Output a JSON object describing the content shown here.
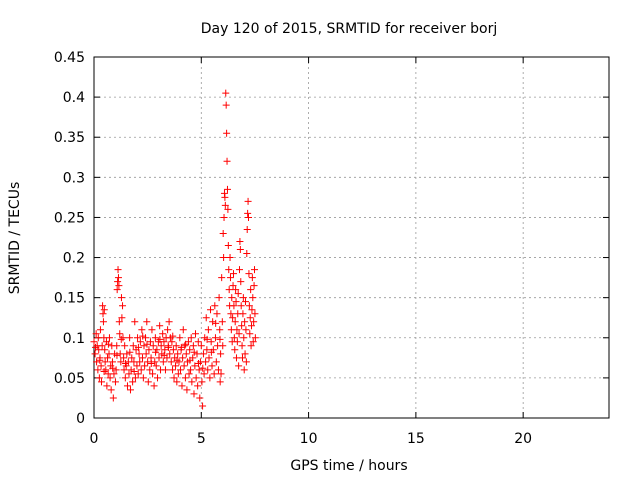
{
  "chart_data": {
    "type": "scatter",
    "title": "Day 120 of 2015, SRMTID for receiver borj",
    "xlabel": "GPS time / hours",
    "ylabel": "SRMTID / TECUs",
    "xlim": [
      0,
      24
    ],
    "ylim": [
      0,
      0.45
    ],
    "grid": true,
    "x_ticks": [
      0,
      5,
      10,
      15,
      20
    ],
    "x_tick_labels": [
      "0",
      "5",
      "10",
      "15",
      "20"
    ],
    "y_ticks": [
      0,
      0.05,
      0.1,
      0.15,
      0.2,
      0.25,
      0.3,
      0.35,
      0.4,
      0.45
    ],
    "y_tick_labels": [
      "0",
      "0.05",
      "0.1",
      "0.15",
      "0.2",
      "0.25",
      "0.3",
      "0.35",
      "0.4",
      "0.45"
    ],
    "marker": "+",
    "color": "#ff0000",
    "series": [
      {
        "name": "SRMTID",
        "points": [
          [
            0.0,
            0.095
          ],
          [
            0.05,
            0.08
          ],
          [
            0.1,
            0.105
          ],
          [
            0.12,
            0.07
          ],
          [
            0.15,
            0.09
          ],
          [
            0.18,
            0.06
          ],
          [
            0.2,
            0.1
          ],
          [
            0.22,
            0.085
          ],
          [
            0.25,
            0.05
          ],
          [
            0.28,
            0.075
          ],
          [
            0.3,
            0.11
          ],
          [
            0.33,
            0.065
          ],
          [
            0.35,
            0.045
          ],
          [
            0.38,
            0.09
          ],
          [
            0.4,
            0.14
          ],
          [
            0.42,
            0.13
          ],
          [
            0.44,
            0.12
          ],
          [
            0.46,
            0.1
          ],
          [
            0.48,
            0.135
          ],
          [
            0.5,
            0.085
          ],
          [
            0.52,
            0.07
          ],
          [
            0.55,
            0.06
          ],
          [
            0.58,
            0.095
          ],
          [
            0.6,
            0.04
          ],
          [
            0.63,
            0.075
          ],
          [
            0.66,
            0.055
          ],
          [
            0.7,
            0.08
          ],
          [
            0.72,
            0.1
          ],
          [
            0.75,
            0.05
          ],
          [
            0.78,
            0.065
          ],
          [
            0.8,
            0.035
          ],
          [
            0.83,
            0.09
          ],
          [
            0.86,
            0.07
          ],
          [
            0.9,
            0.025
          ],
          [
            0.93,
            0.055
          ],
          [
            0.96,
            0.08
          ],
          [
            1.0,
            0.045
          ],
          [
            1.03,
            0.06
          ],
          [
            1.06,
            0.09
          ],
          [
            1.08,
            0.16
          ],
          [
            1.1,
            0.17
          ],
          [
            1.12,
            0.185
          ],
          [
            1.14,
            0.175
          ],
          [
            1.16,
            0.165
          ],
          [
            1.18,
            0.12
          ],
          [
            1.2,
            0.105
          ],
          [
            1.22,
            0.08
          ],
          [
            1.25,
            0.07
          ],
          [
            1.28,
            0.15
          ],
          [
            1.3,
            0.125
          ],
          [
            1.33,
            0.14
          ],
          [
            1.35,
            0.1
          ],
          [
            1.38,
            0.075
          ],
          [
            1.4,
            0.06
          ],
          [
            1.43,
            0.09
          ],
          [
            1.46,
            0.05
          ],
          [
            1.5,
            0.065
          ],
          [
            1.53,
            0.08
          ],
          [
            1.56,
            0.04
          ],
          [
            1.6,
            0.07
          ],
          [
            1.63,
            0.055
          ],
          [
            1.66,
            0.1
          ],
          [
            1.7,
            0.035
          ],
          [
            1.73,
            0.06
          ],
          [
            1.76,
            0.075
          ],
          [
            1.8,
            0.045
          ],
          [
            1.83,
            0.09
          ],
          [
            1.86,
            0.07
          ],
          [
            1.9,
            0.12
          ],
          [
            1.93,
            0.05
          ],
          [
            1.96,
            0.085
          ],
          [
            2.0,
            0.065
          ],
          [
            2.03,
            0.1
          ],
          [
            2.06,
            0.055
          ],
          [
            2.1,
            0.08
          ],
          [
            2.13,
            0.07
          ],
          [
            2.16,
            0.095
          ],
          [
            2.2,
            0.06
          ],
          [
            2.23,
            0.11
          ],
          [
            2.26,
            0.075
          ],
          [
            2.3,
            0.05
          ],
          [
            2.33,
            0.09
          ],
          [
            2.36,
            0.065
          ],
          [
            2.4,
            0.1
          ],
          [
            2.43,
            0.08
          ],
          [
            2.46,
            0.12
          ],
          [
            2.5,
            0.07
          ],
          [
            2.53,
            0.045
          ],
          [
            2.56,
            0.085
          ],
          [
            2.6,
            0.06
          ],
          [
            2.63,
            0.095
          ],
          [
            2.66,
            0.075
          ],
          [
            2.7,
            0.11
          ],
          [
            2.73,
            0.055
          ],
          [
            2.76,
            0.09
          ],
          [
            2.8,
            0.04
          ],
          [
            2.83,
            0.07
          ],
          [
            2.86,
            0.1
          ],
          [
            2.9,
            0.065
          ],
          [
            2.93,
            0.085
          ],
          [
            2.96,
            0.05
          ],
          [
            3.0,
            0.095
          ],
          [
            3.03,
            0.075
          ],
          [
            3.06,
            0.115
          ],
          [
            3.1,
            0.06
          ],
          [
            3.13,
            0.09
          ],
          [
            3.16,
            0.08
          ],
          [
            3.2,
            0.105
          ],
          [
            3.23,
            0.07
          ],
          [
            3.26,
            0.095
          ],
          [
            3.3,
            0.085
          ],
          [
            3.33,
            0.06
          ],
          [
            3.36,
            0.1
          ],
          [
            3.4,
            0.075
          ],
          [
            3.43,
            0.11
          ],
          [
            3.46,
            0.09
          ],
          [
            3.5,
            0.12
          ],
          [
            3.53,
            0.08
          ],
          [
            3.56,
            0.1
          ],
          [
            3.6,
            0.07
          ],
          [
            3.63,
            0.095
          ],
          [
            3.66,
            0.06
          ],
          [
            3.7,
            0.085
          ],
          [
            3.73,
            0.05
          ],
          [
            3.76,
            0.075
          ],
          [
            3.8,
            0.065
          ],
          [
            3.83,
            0.09
          ],
          [
            3.86,
            0.045
          ],
          [
            3.9,
            0.08
          ],
          [
            3.93,
            0.055
          ],
          [
            3.96,
            0.07
          ],
          [
            4.0,
            0.1
          ],
          [
            4.03,
            0.06
          ],
          [
            4.06,
            0.085
          ],
          [
            4.1,
            0.04
          ],
          [
            4.13,
            0.075
          ],
          [
            4.16,
            0.11
          ],
          [
            4.2,
            0.065
          ],
          [
            4.23,
            0.09
          ],
          [
            4.26,
            0.05
          ],
          [
            4.3,
            0.08
          ],
          [
            4.33,
            0.035
          ],
          [
            4.36,
            0.07
          ],
          [
            4.4,
            0.095
          ],
          [
            4.43,
            0.055
          ],
          [
            4.46,
            0.085
          ],
          [
            4.5,
            0.06
          ],
          [
            4.53,
            0.1
          ],
          [
            4.56,
            0.045
          ],
          [
            4.6,
            0.075
          ],
          [
            4.63,
            0.09
          ],
          [
            4.66,
            0.03
          ],
          [
            4.7,
            0.065
          ],
          [
            4.73,
            0.105
          ],
          [
            4.76,
            0.05
          ],
          [
            4.8,
            0.08
          ],
          [
            4.83,
            0.04
          ],
          [
            4.86,
            0.095
          ],
          [
            4.9,
            0.06
          ],
          [
            4.93,
            0.025
          ],
          [
            4.96,
            0.07
          ],
          [
            5.0,
            0.09
          ],
          [
            5.03,
            0.045
          ],
          [
            5.06,
            0.015
          ],
          [
            5.1,
            0.08
          ],
          [
            5.13,
            0.055
          ],
          [
            5.16,
            0.1
          ],
          [
            5.2,
            0.07
          ],
          [
            5.23,
            0.125
          ],
          [
            5.26,
            0.085
          ],
          [
            5.3,
            0.06
          ],
          [
            5.33,
            0.11
          ],
          [
            5.36,
            0.075
          ],
          [
            5.4,
            0.05
          ],
          [
            5.43,
            0.135
          ],
          [
            5.46,
            0.095
          ],
          [
            5.5,
            0.065
          ],
          [
            5.53,
            0.12
          ],
          [
            5.56,
            0.085
          ],
          [
            5.6,
            0.055
          ],
          [
            5.63,
            0.14
          ],
          [
            5.66,
            0.1
          ],
          [
            5.7,
            0.07
          ],
          [
            5.73,
            0.13
          ],
          [
            5.76,
            0.09
          ],
          [
            5.8,
            0.06
          ],
          [
            5.83,
            0.15
          ],
          [
            5.86,
            0.11
          ],
          [
            5.88,
            0.045
          ],
          [
            5.9,
            0.08
          ],
          [
            5.92,
            0.055
          ],
          [
            5.95,
            0.175
          ],
          [
            5.98,
            0.12
          ],
          [
            6.0,
            0.09
          ],
          [
            6.02,
            0.23
          ],
          [
            6.04,
            0.2
          ],
          [
            6.06,
            0.25
          ],
          [
            6.08,
            0.28
          ],
          [
            6.1,
            0.275
          ],
          [
            6.12,
            0.265
          ],
          [
            6.14,
            0.405
          ],
          [
            6.16,
            0.39
          ],
          [
            6.18,
            0.355
          ],
          [
            6.2,
            0.32
          ],
          [
            6.22,
            0.285
          ],
          [
            6.24,
            0.26
          ],
          [
            6.26,
            0.215
          ],
          [
            6.28,
            0.185
          ],
          [
            6.3,
            0.16
          ],
          [
            6.32,
            0.14
          ],
          [
            6.34,
            0.2
          ],
          [
            6.36,
            0.175
          ],
          [
            6.38,
            0.13
          ],
          [
            6.4,
            0.11
          ],
          [
            6.42,
            0.15
          ],
          [
            6.44,
            0.095
          ],
          [
            6.46,
            0.125
          ],
          [
            6.48,
            0.165
          ],
          [
            6.5,
            0.18
          ],
          [
            6.52,
            0.14
          ],
          [
            6.54,
            0.1
          ],
          [
            6.56,
            0.085
          ],
          [
            6.58,
            0.12
          ],
          [
            6.6,
            0.16
          ],
          [
            6.62,
            0.145
          ],
          [
            6.64,
            0.075
          ],
          [
            6.66,
            0.11
          ],
          [
            6.68,
            0.095
          ],
          [
            6.7,
            0.13
          ],
          [
            6.72,
            0.155
          ],
          [
            6.74,
            0.065
          ],
          [
            6.76,
            0.105
          ],
          [
            6.78,
            0.185
          ],
          [
            6.8,
            0.22
          ],
          [
            6.82,
            0.21
          ],
          [
            6.84,
            0.17
          ],
          [
            6.86,
            0.14
          ],
          [
            6.88,
            0.115
          ],
          [
            6.9,
            0.09
          ],
          [
            6.92,
            0.075
          ],
          [
            6.94,
            0.13
          ],
          [
            6.96,
            0.15
          ],
          [
            6.98,
            0.1
          ],
          [
            7.0,
            0.06
          ],
          [
            7.02,
            0.12
          ],
          [
            7.04,
            0.08
          ],
          [
            7.06,
            0.145
          ],
          [
            7.08,
            0.11
          ],
          [
            7.1,
            0.07
          ],
          [
            7.12,
            0.205
          ],
          [
            7.14,
            0.235
          ],
          [
            7.16,
            0.255
          ],
          [
            7.18,
            0.27
          ],
          [
            7.2,
            0.25
          ],
          [
            7.22,
            0.18
          ],
          [
            7.24,
            0.14
          ],
          [
            7.26,
            0.105
          ],
          [
            7.28,
            0.125
          ],
          [
            7.3,
            0.16
          ],
          [
            7.32,
            0.09
          ],
          [
            7.34,
            0.115
          ],
          [
            7.36,
            0.135
          ],
          [
            7.38,
            0.175
          ],
          [
            7.4,
            0.15
          ],
          [
            7.42,
            0.095
          ],
          [
            7.44,
            0.12
          ],
          [
            7.46,
            0.165
          ],
          [
            7.48,
            0.185
          ],
          [
            7.5,
            0.13
          ],
          [
            7.52,
            0.1
          ],
          [
            0.07,
            0.088
          ],
          [
            0.27,
            0.072
          ],
          [
            0.47,
            0.058
          ],
          [
            0.67,
            0.092
          ],
          [
            0.87,
            0.062
          ],
          [
            1.07,
            0.078
          ],
          [
            1.27,
            0.098
          ],
          [
            1.47,
            0.068
          ],
          [
            1.67,
            0.082
          ],
          [
            1.87,
            0.058
          ],
          [
            2.07,
            0.088
          ],
          [
            2.27,
            0.102
          ],
          [
            2.47,
            0.092
          ],
          [
            2.67,
            0.068
          ],
          [
            2.87,
            0.082
          ],
          [
            3.07,
            0.098
          ],
          [
            3.27,
            0.078
          ],
          [
            3.47,
            0.088
          ],
          [
            3.67,
            0.102
          ],
          [
            3.87,
            0.072
          ],
          [
            4.07,
            0.088
          ],
          [
            4.27,
            0.092
          ],
          [
            4.47,
            0.072
          ],
          [
            4.67,
            0.082
          ],
          [
            4.87,
            0.068
          ],
          [
            5.07,
            0.062
          ],
          [
            5.27,
            0.098
          ],
          [
            5.47,
            0.082
          ],
          [
            5.67,
            0.118
          ],
          [
            5.87,
            0.098
          ]
        ]
      }
    ]
  }
}
